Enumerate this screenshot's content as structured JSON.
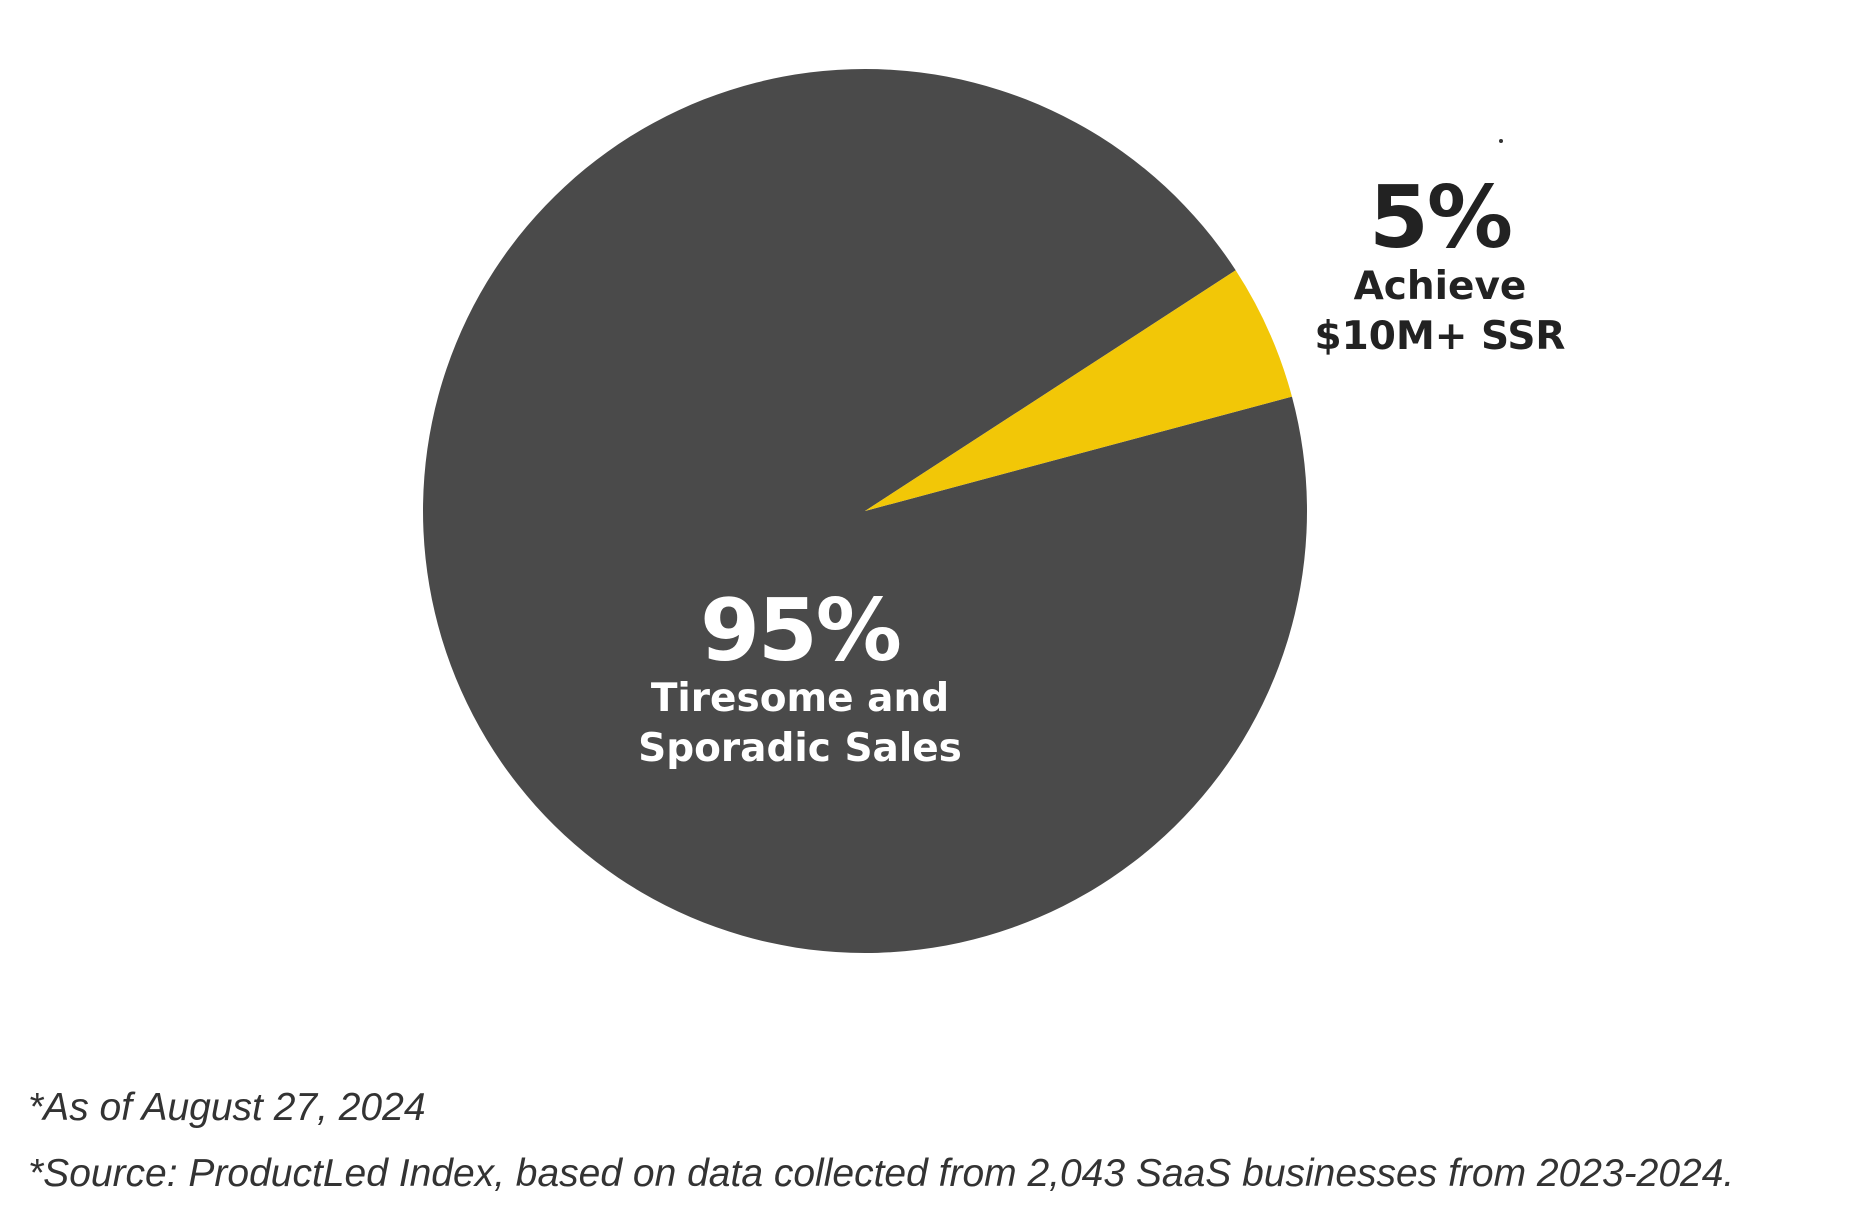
{
  "chart_data": {
    "type": "pie",
    "slices": [
      {
        "value": 95,
        "percent_label": "95%",
        "label_lines": [
          "Tiresome and",
          "Sporadic Sales"
        ],
        "color": "#4a4a4a"
      },
      {
        "value": 5,
        "percent_label": "5%",
        "label_lines": [
          "Achieve",
          "$10M+ SSR"
        ],
        "color": "#f2c707"
      }
    ],
    "legend": false
  },
  "footnotes": {
    "date": "*As of August 27, 2024",
    "source": "*Source: ProductLed Index, based on data collected from 2,043 SaaS businesses from 2023-2024."
  }
}
